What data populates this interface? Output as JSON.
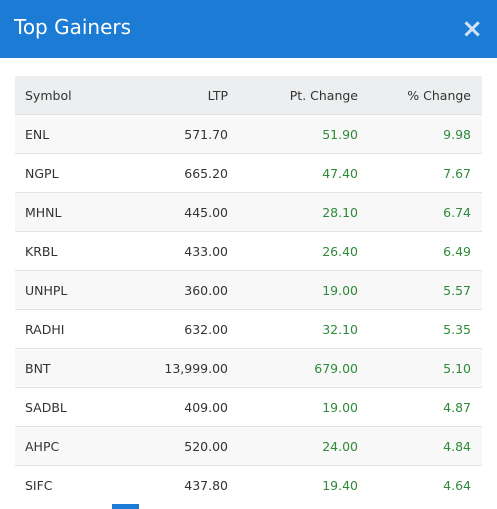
{
  "header": {
    "title": "Top Gainers",
    "close": "×"
  },
  "table": {
    "columns": [
      "Symbol",
      "LTP",
      "Pt. Change",
      "% Change"
    ],
    "rows": [
      [
        "ENL",
        "571.70",
        "51.90",
        "9.98"
      ],
      [
        "NGPL",
        "665.20",
        "47.40",
        "7.67"
      ],
      [
        "MHNL",
        "445.00",
        "28.10",
        "6.74"
      ],
      [
        "KRBL",
        "433.00",
        "26.40",
        "6.49"
      ],
      [
        "UNHPL",
        "360.00",
        "19.00",
        "5.57"
      ],
      [
        "RADHI",
        "632.00",
        "32.10",
        "5.35"
      ],
      [
        "BNT",
        "13,999.00",
        "679.00",
        "5.10"
      ],
      [
        "SADBL",
        "409.00",
        "19.00",
        "4.87"
      ],
      [
        "AHPC",
        "520.00",
        "24.00",
        "4.84"
      ],
      [
        "SIFC",
        "437.80",
        "19.40",
        "4.64"
      ]
    ]
  }
}
